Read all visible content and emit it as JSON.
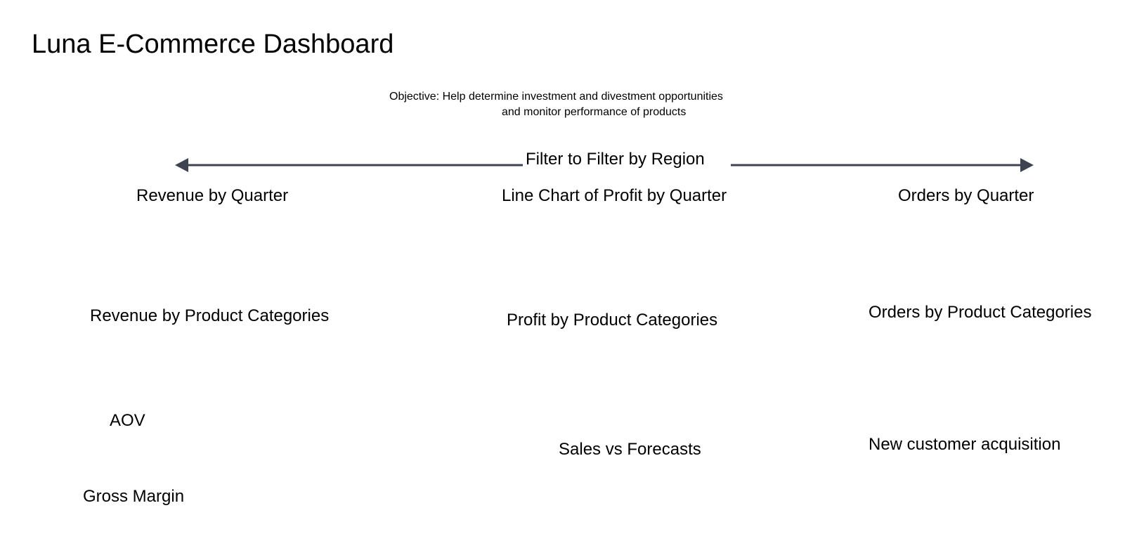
{
  "title": "Luna E-Commerce Dashboard",
  "objective": {
    "line1": "Objective: Help determine investment and divestment opportunities",
    "line2": "and monitor performance of products"
  },
  "filter": {
    "label": "Filter to Filter by Region",
    "line_color": "#3d4350"
  },
  "panels": {
    "revenue_by_quarter": "Revenue by Quarter",
    "profit_line_chart": "Line Chart of Profit by Quarter",
    "orders_by_quarter": "Orders by Quarter",
    "revenue_by_category": "Revenue by Product Categories",
    "profit_by_category": "Profit by Product Categories",
    "orders_by_category": "Orders by Product Categories",
    "aov": "AOV",
    "sales_vs_forecasts": "Sales vs Forecasts",
    "new_customer_acquisition": "New customer acquisition",
    "gross_margin": "Gross Margin"
  }
}
